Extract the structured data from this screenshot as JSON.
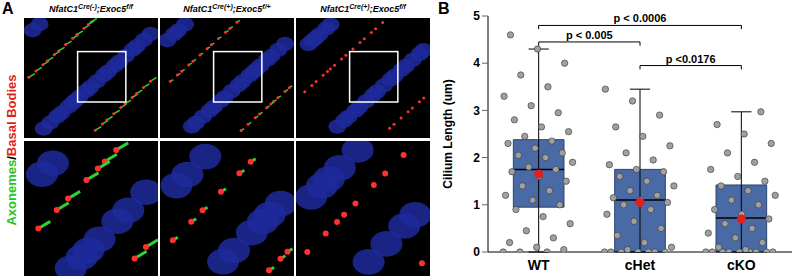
{
  "panel_a": {
    "label": "A",
    "side_label": [
      {
        "text": "Axonemes",
        "color": "#22c422"
      },
      {
        "text": "/",
        "color": "#000000"
      },
      {
        "text": "Basal Bodies",
        "color": "#e01e1e"
      }
    ],
    "columns": [
      [
        {
          "text": "NfatC1"
        },
        {
          "text": "Cre(-)",
          "sup": true
        },
        {
          "text": ";Exoc5"
        },
        {
          "text": "f/f",
          "sup": true
        }
      ],
      [
        {
          "text": "NfatC1"
        },
        {
          "text": "Cre(+)",
          "sup": true
        },
        {
          "text": ";Exoc5"
        },
        {
          "text": "f/+",
          "sup": true
        }
      ],
      [
        {
          "text": "NfatC1"
        },
        {
          "text": "Cre(+)",
          "sup": true
        },
        {
          "text": ";Exoc5"
        },
        {
          "text": "f/f",
          "sup": true
        }
      ]
    ]
  },
  "chart_data": {
    "type": "box",
    "panel_label": "B",
    "y_label": "Cilium Length (um)",
    "categories": [
      "WT",
      "cHet",
      "cKO"
    ],
    "ylim": [
      0,
      5
    ],
    "yticks": [
      0,
      1,
      2,
      3,
      4,
      5
    ],
    "grid": false,
    "color": "#4a6aa5",
    "box": [
      {
        "min": 0,
        "q1": 0.95,
        "median": 1.75,
        "q3": 2.38,
        "max": 4.3,
        "mean": 1.65
      },
      {
        "min": 0,
        "q1": 0,
        "median": 1.1,
        "q3": 1.75,
        "max": 3.45,
        "mean": 1.05
      },
      {
        "min": 0,
        "q1": 0,
        "median": 0.72,
        "q3": 1.42,
        "max": 2.97,
        "mean": 0.7
      }
    ],
    "mean_color": "#e02020",
    "point_color": "#a0a0a0",
    "points": [
      [
        0,
        0,
        0,
        0.05,
        0.1,
        0.2,
        0.3,
        0.45,
        0.6,
        0.75,
        0.9,
        1.0,
        1.1,
        1.2,
        1.3,
        1.4,
        1.5,
        1.6,
        1.7,
        1.75,
        1.8,
        1.9,
        2.0,
        2.05,
        2.1,
        2.2,
        2.3,
        2.35,
        2.45,
        2.55,
        2.65,
        2.8,
        2.95,
        3.1,
        3.3,
        3.5,
        3.75,
        4.0,
        4.3,
        4.6
      ],
      [
        0,
        0,
        0,
        0,
        0,
        0,
        0,
        0.05,
        0.1,
        0.2,
        0.35,
        0.5,
        0.65,
        0.8,
        0.9,
        1.0,
        1.05,
        1.1,
        1.15,
        1.2,
        1.3,
        1.4,
        1.5,
        1.6,
        1.7,
        1.75,
        1.85,
        1.95,
        2.1,
        2.25,
        2.45,
        2.65,
        2.9,
        3.2,
        3.45
      ],
      [
        0,
        0,
        0,
        0,
        0,
        0,
        0,
        0,
        0,
        0.05,
        0.1,
        0.2,
        0.3,
        0.4,
        0.5,
        0.6,
        0.7,
        0.8,
        0.9,
        1.0,
        1.1,
        1.2,
        1.3,
        1.4,
        1.5,
        1.6,
        1.75,
        1.9,
        2.1,
        2.3,
        2.5,
        2.7,
        2.97
      ]
    ],
    "comparisons": [
      {
        "from": "WT",
        "to": "cKO",
        "y": 4.8,
        "label": "p < 0.0006"
      },
      {
        "from": "WT",
        "to": "cHet",
        "y": 4.45,
        "label": "p < 0.005"
      },
      {
        "from": "cHet",
        "to": "cKO",
        "y": 3.95,
        "label": "p <0.0176"
      }
    ]
  }
}
